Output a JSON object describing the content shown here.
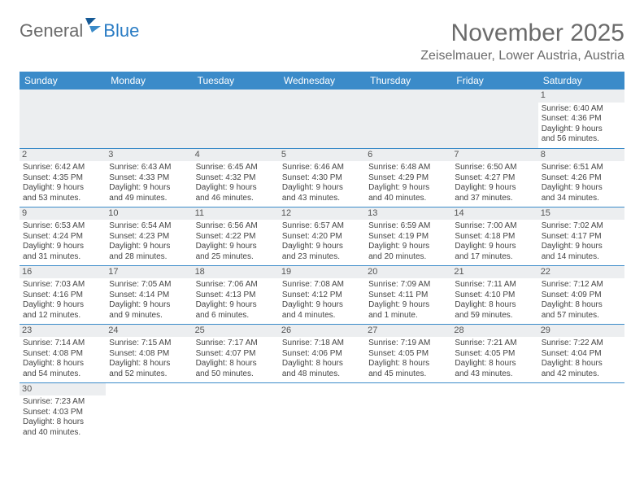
{
  "header": {
    "logo_first": "General",
    "logo_second": "Blue",
    "month_title": "November 2025",
    "location": "Zeiselmauer, Lower Austria, Austria"
  },
  "style": {
    "header_bg": "#3b8bc9",
    "header_text": "#ffffff",
    "daynum_bg": "#eceef0",
    "row_border": "#3b8bc9",
    "body_text": "#444",
    "title_color": "#6b6b6b",
    "logo_gray": "#6b6b6b",
    "logo_blue": "#2a7cc4",
    "page_bg": "#ffffff",
    "font_family": "Arial",
    "th_fontsize": 12,
    "td_fontsize": 10,
    "title_fontsize": 30,
    "location_fontsize": 16
  },
  "weekdays": [
    "Sunday",
    "Monday",
    "Tuesday",
    "Wednesday",
    "Thursday",
    "Friday",
    "Saturday"
  ],
  "leading_blanks": 6,
  "days": [
    {
      "n": "1",
      "sunrise": "Sunrise: 6:40 AM",
      "sunset": "Sunset: 4:36 PM",
      "day_a": "Daylight: 9 hours",
      "day_b": "and 56 minutes."
    },
    {
      "n": "2",
      "sunrise": "Sunrise: 6:42 AM",
      "sunset": "Sunset: 4:35 PM",
      "day_a": "Daylight: 9 hours",
      "day_b": "and 53 minutes."
    },
    {
      "n": "3",
      "sunrise": "Sunrise: 6:43 AM",
      "sunset": "Sunset: 4:33 PM",
      "day_a": "Daylight: 9 hours",
      "day_b": "and 49 minutes."
    },
    {
      "n": "4",
      "sunrise": "Sunrise: 6:45 AM",
      "sunset": "Sunset: 4:32 PM",
      "day_a": "Daylight: 9 hours",
      "day_b": "and 46 minutes."
    },
    {
      "n": "5",
      "sunrise": "Sunrise: 6:46 AM",
      "sunset": "Sunset: 4:30 PM",
      "day_a": "Daylight: 9 hours",
      "day_b": "and 43 minutes."
    },
    {
      "n": "6",
      "sunrise": "Sunrise: 6:48 AM",
      "sunset": "Sunset: 4:29 PM",
      "day_a": "Daylight: 9 hours",
      "day_b": "and 40 minutes."
    },
    {
      "n": "7",
      "sunrise": "Sunrise: 6:50 AM",
      "sunset": "Sunset: 4:27 PM",
      "day_a": "Daylight: 9 hours",
      "day_b": "and 37 minutes."
    },
    {
      "n": "8",
      "sunrise": "Sunrise: 6:51 AM",
      "sunset": "Sunset: 4:26 PM",
      "day_a": "Daylight: 9 hours",
      "day_b": "and 34 minutes."
    },
    {
      "n": "9",
      "sunrise": "Sunrise: 6:53 AM",
      "sunset": "Sunset: 4:24 PM",
      "day_a": "Daylight: 9 hours",
      "day_b": "and 31 minutes."
    },
    {
      "n": "10",
      "sunrise": "Sunrise: 6:54 AM",
      "sunset": "Sunset: 4:23 PM",
      "day_a": "Daylight: 9 hours",
      "day_b": "and 28 minutes."
    },
    {
      "n": "11",
      "sunrise": "Sunrise: 6:56 AM",
      "sunset": "Sunset: 4:22 PM",
      "day_a": "Daylight: 9 hours",
      "day_b": "and 25 minutes."
    },
    {
      "n": "12",
      "sunrise": "Sunrise: 6:57 AM",
      "sunset": "Sunset: 4:20 PM",
      "day_a": "Daylight: 9 hours",
      "day_b": "and 23 minutes."
    },
    {
      "n": "13",
      "sunrise": "Sunrise: 6:59 AM",
      "sunset": "Sunset: 4:19 PM",
      "day_a": "Daylight: 9 hours",
      "day_b": "and 20 minutes."
    },
    {
      "n": "14",
      "sunrise": "Sunrise: 7:00 AM",
      "sunset": "Sunset: 4:18 PM",
      "day_a": "Daylight: 9 hours",
      "day_b": "and 17 minutes."
    },
    {
      "n": "15",
      "sunrise": "Sunrise: 7:02 AM",
      "sunset": "Sunset: 4:17 PM",
      "day_a": "Daylight: 9 hours",
      "day_b": "and 14 minutes."
    },
    {
      "n": "16",
      "sunrise": "Sunrise: 7:03 AM",
      "sunset": "Sunset: 4:16 PM",
      "day_a": "Daylight: 9 hours",
      "day_b": "and 12 minutes."
    },
    {
      "n": "17",
      "sunrise": "Sunrise: 7:05 AM",
      "sunset": "Sunset: 4:14 PM",
      "day_a": "Daylight: 9 hours",
      "day_b": "and 9 minutes."
    },
    {
      "n": "18",
      "sunrise": "Sunrise: 7:06 AM",
      "sunset": "Sunset: 4:13 PM",
      "day_a": "Daylight: 9 hours",
      "day_b": "and 6 minutes."
    },
    {
      "n": "19",
      "sunrise": "Sunrise: 7:08 AM",
      "sunset": "Sunset: 4:12 PM",
      "day_a": "Daylight: 9 hours",
      "day_b": "and 4 minutes."
    },
    {
      "n": "20",
      "sunrise": "Sunrise: 7:09 AM",
      "sunset": "Sunset: 4:11 PM",
      "day_a": "Daylight: 9 hours",
      "day_b": "and 1 minute."
    },
    {
      "n": "21",
      "sunrise": "Sunrise: 7:11 AM",
      "sunset": "Sunset: 4:10 PM",
      "day_a": "Daylight: 8 hours",
      "day_b": "and 59 minutes."
    },
    {
      "n": "22",
      "sunrise": "Sunrise: 7:12 AM",
      "sunset": "Sunset: 4:09 PM",
      "day_a": "Daylight: 8 hours",
      "day_b": "and 57 minutes."
    },
    {
      "n": "23",
      "sunrise": "Sunrise: 7:14 AM",
      "sunset": "Sunset: 4:08 PM",
      "day_a": "Daylight: 8 hours",
      "day_b": "and 54 minutes."
    },
    {
      "n": "24",
      "sunrise": "Sunrise: 7:15 AM",
      "sunset": "Sunset: 4:08 PM",
      "day_a": "Daylight: 8 hours",
      "day_b": "and 52 minutes."
    },
    {
      "n": "25",
      "sunrise": "Sunrise: 7:17 AM",
      "sunset": "Sunset: 4:07 PM",
      "day_a": "Daylight: 8 hours",
      "day_b": "and 50 minutes."
    },
    {
      "n": "26",
      "sunrise": "Sunrise: 7:18 AM",
      "sunset": "Sunset: 4:06 PM",
      "day_a": "Daylight: 8 hours",
      "day_b": "and 48 minutes."
    },
    {
      "n": "27",
      "sunrise": "Sunrise: 7:19 AM",
      "sunset": "Sunset: 4:05 PM",
      "day_a": "Daylight: 8 hours",
      "day_b": "and 45 minutes."
    },
    {
      "n": "28",
      "sunrise": "Sunrise: 7:21 AM",
      "sunset": "Sunset: 4:05 PM",
      "day_a": "Daylight: 8 hours",
      "day_b": "and 43 minutes."
    },
    {
      "n": "29",
      "sunrise": "Sunrise: 7:22 AM",
      "sunset": "Sunset: 4:04 PM",
      "day_a": "Daylight: 8 hours",
      "day_b": "and 42 minutes."
    },
    {
      "n": "30",
      "sunrise": "Sunrise: 7:23 AM",
      "sunset": "Sunset: 4:03 PM",
      "day_a": "Daylight: 8 hours",
      "day_b": "and 40 minutes."
    }
  ]
}
